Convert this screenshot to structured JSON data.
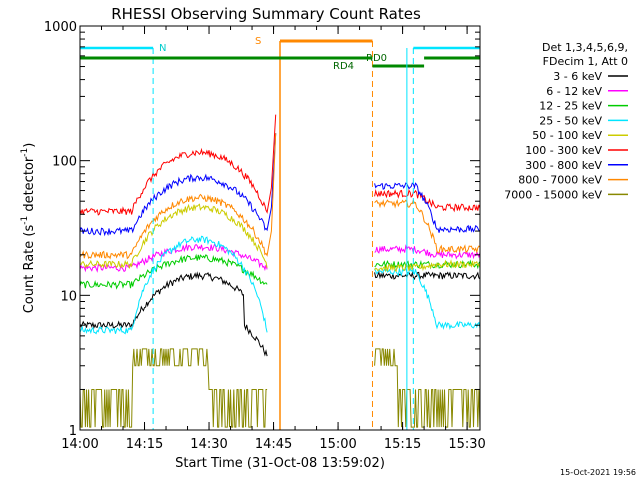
{
  "chart_data": {
    "type": "line",
    "title": "RHESSI Observing Summary Count Rates",
    "xlabel": "Start Time (31-Oct-08 13:59:02)",
    "ylabel_main": "Count Rate (s",
    "ylabel_sup": "-1",
    "ylabel_tail": " detector",
    "ylabel_tail_sup": "-1",
    "ylabel_close": ")",
    "y_scale": "log",
    "xlim_minutes": [
      0,
      93
    ],
    "ylim": [
      1,
      1000
    ],
    "x_ticks": [
      {
        "label": "14:00",
        "min": 0
      },
      {
        "label": "14:15",
        "min": 15
      },
      {
        "label": "14:30",
        "min": 30
      },
      {
        "label": "14:45",
        "min": 45
      },
      {
        "label": "15:00",
        "min": 60
      },
      {
        "label": "15:15",
        "min": 75
      },
      {
        "label": "15:30",
        "min": 90
      }
    ],
    "y_ticks": [
      {
        "label": "1",
        "value": 1
      },
      {
        "label": "10",
        "value": 10
      },
      {
        "label": "100",
        "value": 100
      },
      {
        "label": "1000",
        "value": 1000
      }
    ],
    "legend_header": [
      "Det 1,3,4,5,6,9,",
      "FDecim 1, Att 0"
    ],
    "series": [
      {
        "name": "3 - 6 keV",
        "color": "#000000"
      },
      {
        "name": "6 - 12 keV",
        "color": "#ff00ff"
      },
      {
        "name": "12 - 25 keV",
        "color": "#00cc00"
      },
      {
        "name": "25 - 50 keV",
        "color": "#00e5ff"
      },
      {
        "name": "50 - 100 keV",
        "color": "#cccc00"
      },
      {
        "name": "100 - 300 keV",
        "color": "#ff0000"
      },
      {
        "name": "300 - 800 keV",
        "color": "#0000ff"
      },
      {
        "name": "800 - 7000 keV",
        "color": "#ff8800"
      },
      {
        "name": "7000 - 15000 keV",
        "color": "#888800"
      }
    ],
    "annotations": {
      "night_label": "N",
      "saa_label": "S",
      "rd0_label": "RD0",
      "rd4_label": "RD4",
      "night_intervals_min": [
        [
          0,
          17
        ],
        [
          77.5,
          93
        ]
      ],
      "saa_interval_min": [
        46.5,
        68
      ],
      "rd0_interval_min": [
        [
          0,
          68
        ],
        [
          80,
          93
        ]
      ],
      "rd4_interval_min": [
        68,
        80
      ]
    },
    "grid": false,
    "legend_position": "right"
  },
  "footer": {
    "date_stamp": "15-Oct-2021 19:56"
  }
}
